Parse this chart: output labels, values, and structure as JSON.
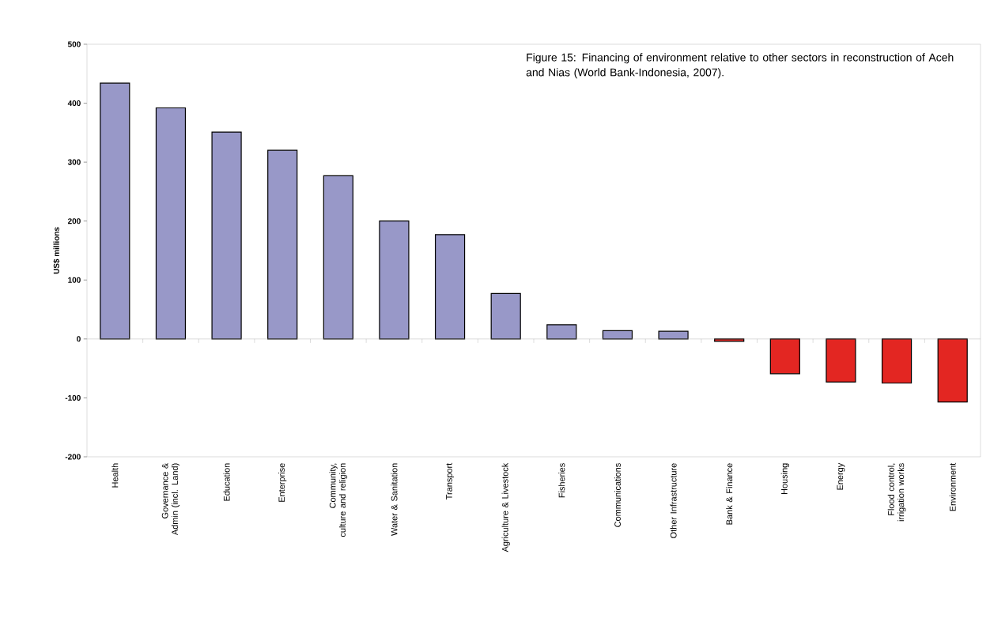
{
  "chart_data": {
    "type": "bar",
    "ylabel": "US$ millions",
    "annotations": [
      "Figure 15: Financing of environment relative to other sectors in reconstruction of Aceh and Nias (World Bank-Indonesia, 2007)."
    ],
    "categories": [
      "Health",
      "Governance & Admin (incl. Land)",
      "Education",
      "Enterprise",
      "Community, culture and religion",
      "Water & Sanitation",
      "Transport",
      "Agriculture & Livestock",
      "Fisheries",
      "Communications",
      "Other Infrastructure",
      "Bank & Finance",
      "Housing",
      "Energy",
      "Flood control, irrigation works",
      "Environment"
    ],
    "values": [
      434,
      392,
      351,
      320,
      277,
      200,
      177,
      77,
      24,
      14,
      13,
      -4,
      -59,
      -73,
      -75,
      -107
    ],
    "colors": [
      "#9898c8",
      "#9898c8",
      "#9898c8",
      "#9898c8",
      "#9898c8",
      "#9898c8",
      "#9898c8",
      "#9898c8",
      "#9898c8",
      "#9898c8",
      "#9898c8",
      "#e32622",
      "#e32622",
      "#e32622",
      "#e32622",
      "#e32622"
    ],
    "ylim": [
      -200,
      500
    ],
    "yticks": [
      -200,
      -100,
      0,
      100,
      200,
      300,
      400,
      500
    ]
  }
}
